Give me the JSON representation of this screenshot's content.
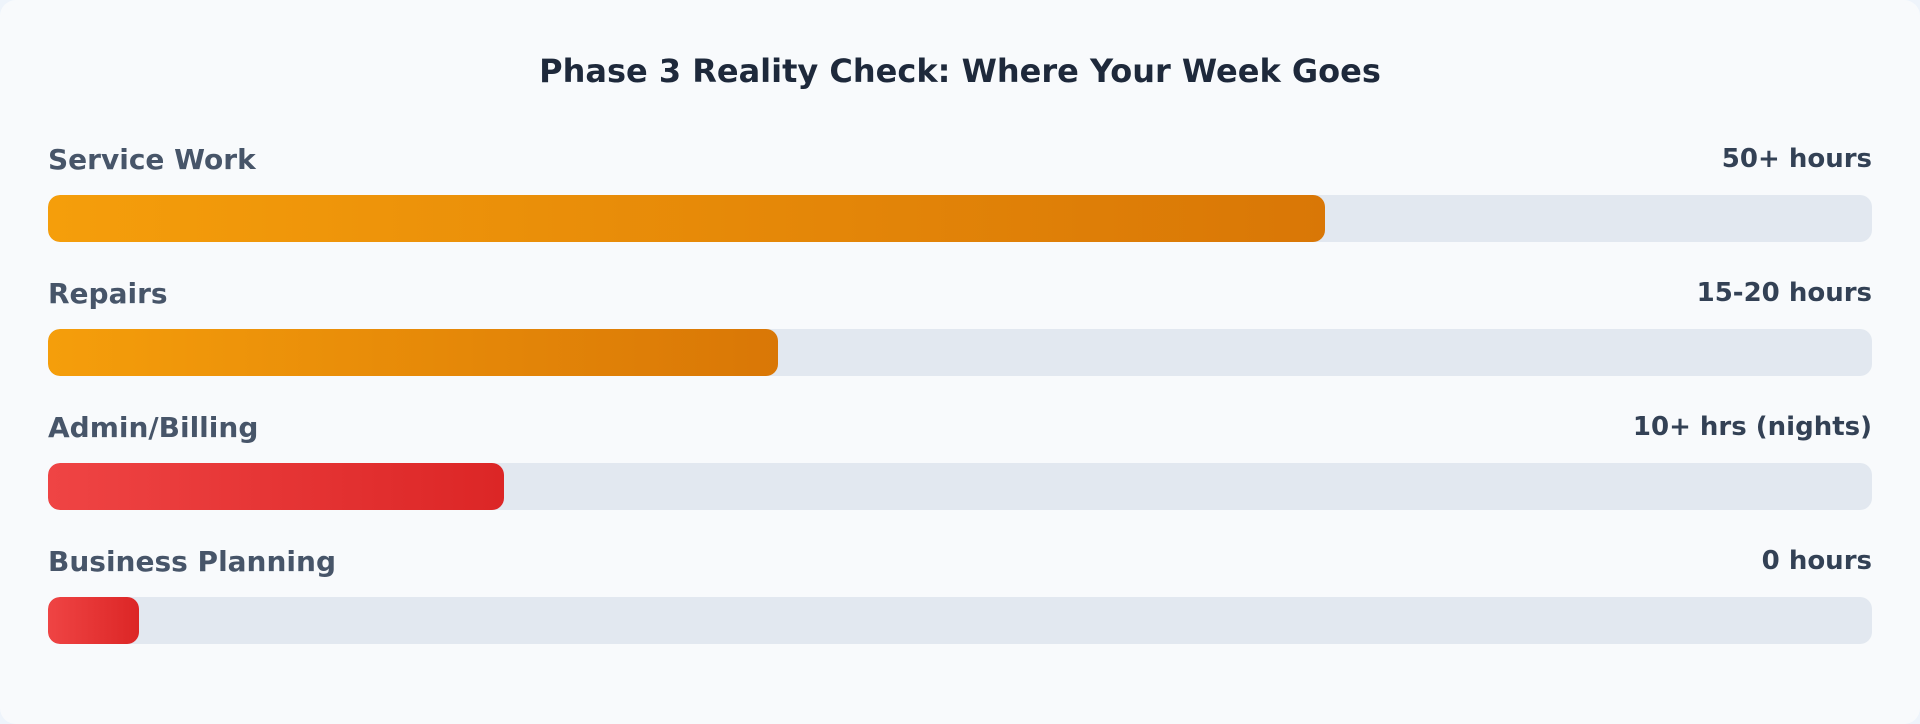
{
  "title": "Phase 3 Reality Check: Where Your Week Goes",
  "rows": [
    {
      "label": "Service Work",
      "value": "50+ hours",
      "percent": 70,
      "color": "amber"
    },
    {
      "label": "Repairs",
      "value": "15-20 hours",
      "percent": 40,
      "color": "amber"
    },
    {
      "label": "Admin/Billing",
      "value": "10+ hrs (nights)",
      "percent": 25,
      "color": "red"
    },
    {
      "label": "Business Planning",
      "value": "0 hours",
      "percent": 5,
      "color": "red"
    }
  ],
  "colors": {
    "amber_start": "#f59e0b",
    "amber_end": "#d97706",
    "red_start": "#ef4444",
    "red_end": "#dc2626",
    "track": "#e2e8f0"
  },
  "chart_data": {
    "type": "bar",
    "orientation": "horizontal",
    "title": "Phase 3 Reality Check: Where Your Week Goes",
    "categories": [
      "Service Work",
      "Repairs",
      "Admin/Billing",
      "Business Planning"
    ],
    "values": [
      70,
      40,
      25,
      5
    ],
    "value_labels": [
      "50+ hours",
      "15-20 hours",
      "10+ hrs (nights)",
      "0 hours"
    ],
    "xlim": [
      0,
      100
    ],
    "grid": false,
    "legend": "none"
  }
}
